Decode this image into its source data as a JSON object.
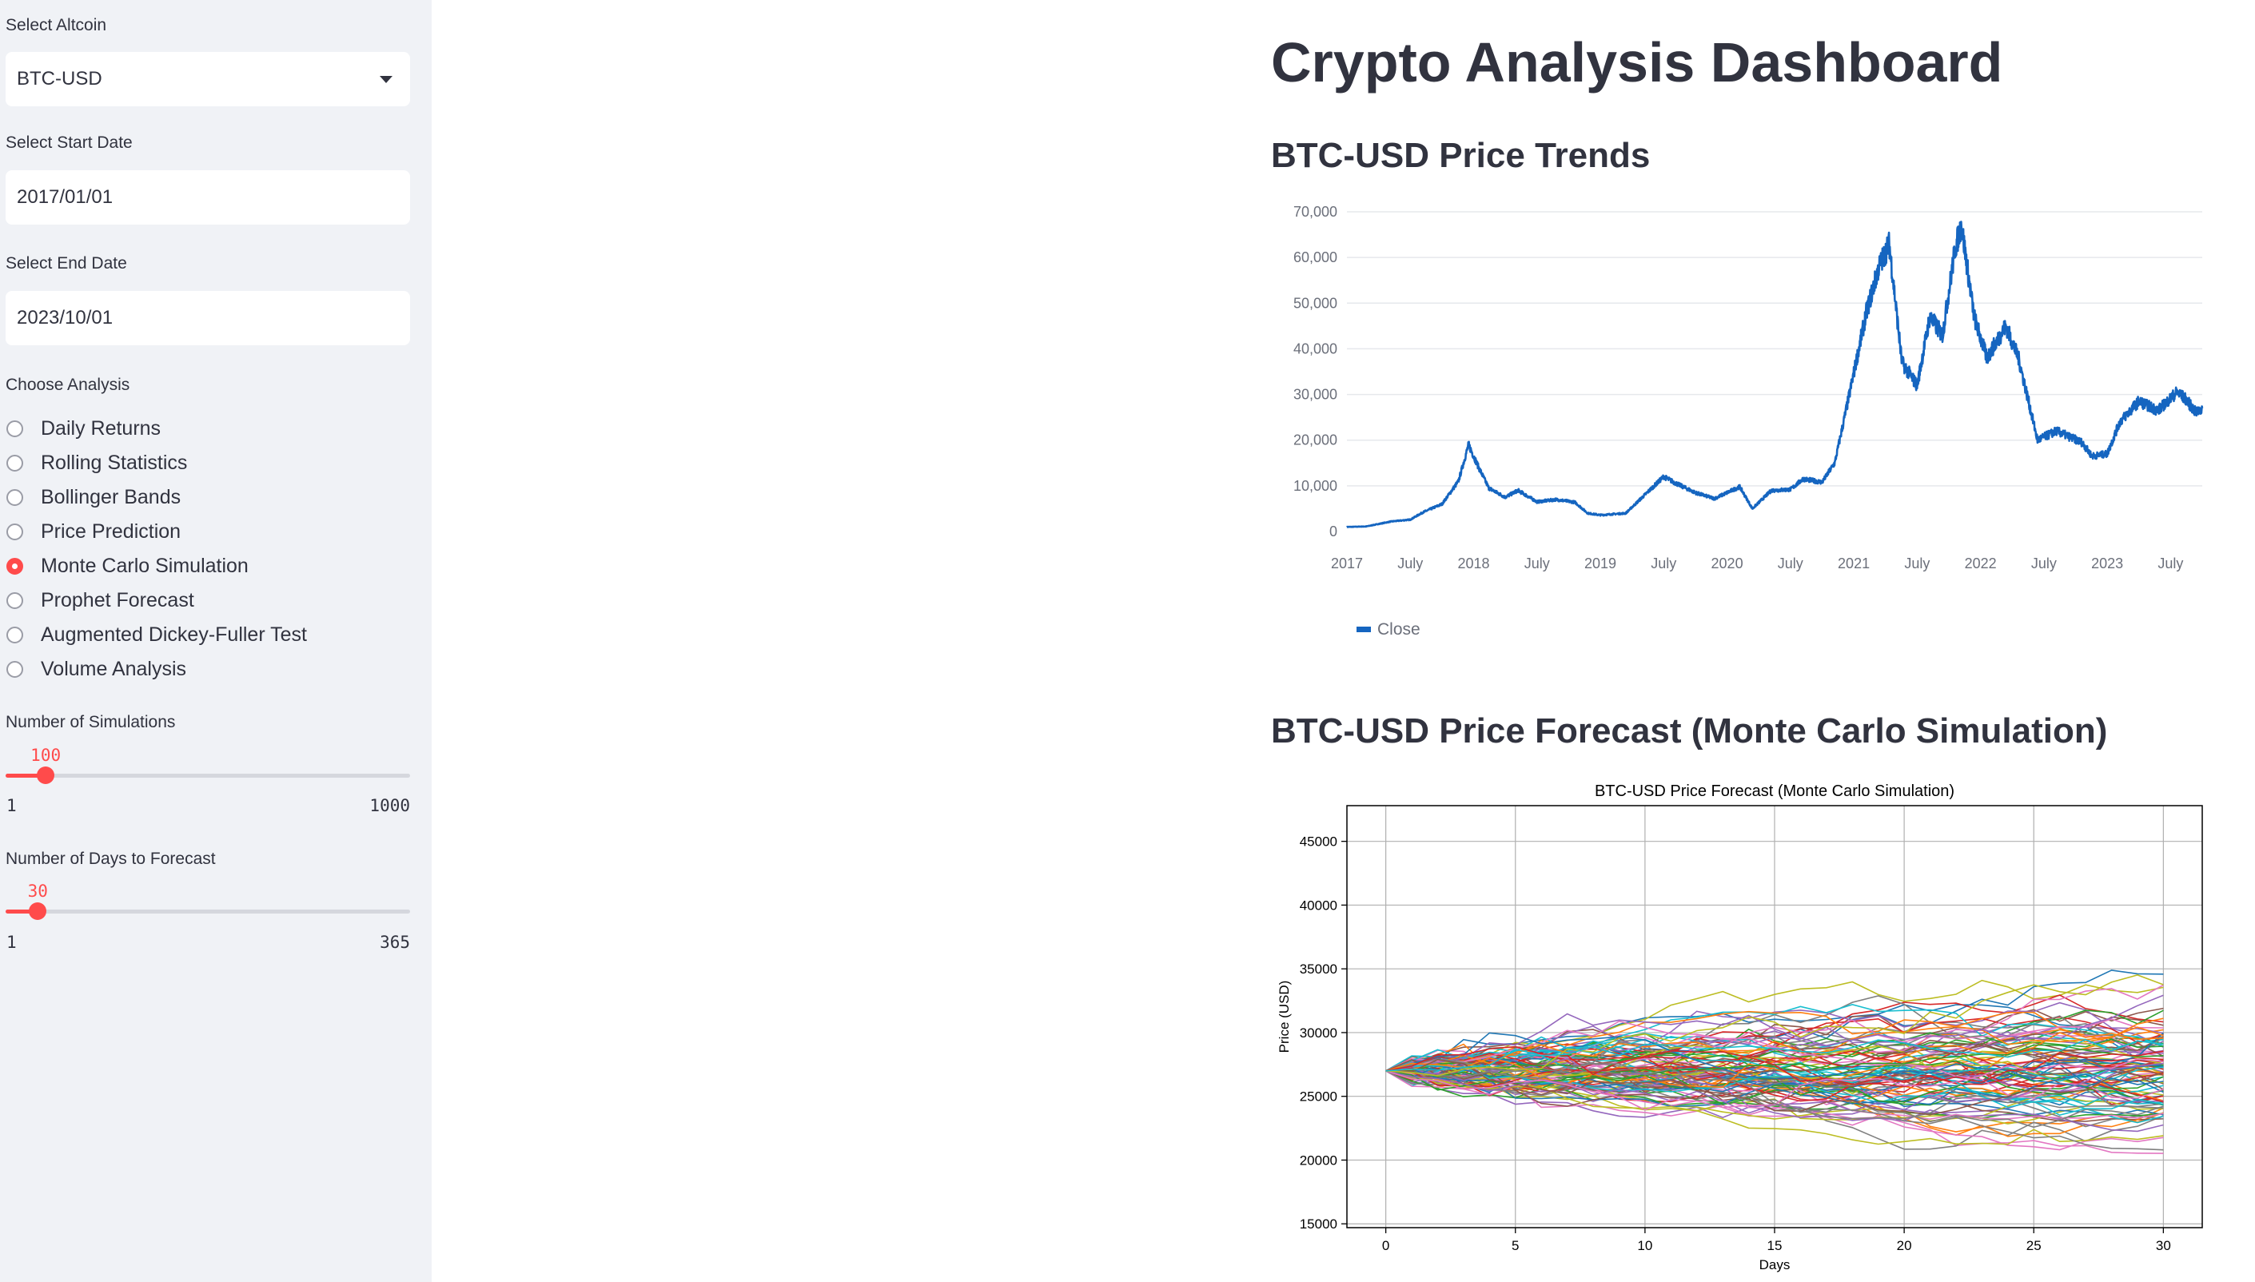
{
  "sidebar": {
    "altcoin_label": "Select Altcoin",
    "altcoin_value": "BTC-USD",
    "start_label": "Select Start Date",
    "start_value": "2017/01/01",
    "end_label": "Select End Date",
    "end_value": "2023/10/01",
    "analysis_label": "Choose Analysis",
    "analysis_options": [
      "Daily Returns",
      "Rolling Statistics",
      "Bollinger Bands",
      "Price Prediction",
      "Monte Carlo Simulation",
      "Prophet Forecast",
      "Augmented Dickey-Fuller Test",
      "Volume Analysis"
    ],
    "analysis_selected": "Monte Carlo Simulation",
    "simulations": {
      "label": "Number of Simulations",
      "value": 100,
      "value_text": "100",
      "min": 1,
      "max": 1000,
      "min_text": "1",
      "max_text": "1000"
    },
    "days": {
      "label": "Number of Days to Forecast",
      "value": 30,
      "value_text": "30",
      "min": 1,
      "max": 365,
      "min_text": "1",
      "max_text": "365"
    }
  },
  "main": {
    "title": "Crypto Analysis Dashboard",
    "trend_heading": "BTC-USD Price Trends",
    "forecast_heading": "BTC-USD Price Forecast (Monte Carlo Simulation)"
  },
  "colors": {
    "accent": "#ff4b4b",
    "line": "#1565c0",
    "sidebar_bg": "#f0f2f6",
    "text": "#31333f"
  },
  "chart_data": [
    {
      "type": "line",
      "title": "BTC-USD Price Trends",
      "series": [
        {
          "name": "Close"
        }
      ],
      "legend": [
        "Close"
      ],
      "x_tick_labels": [
        "2017",
        "July",
        "2018",
        "July",
        "2019",
        "July",
        "2020",
        "July",
        "2021",
        "July",
        "2022",
        "July",
        "2023",
        "July"
      ],
      "x_ticks": [
        2017.0,
        2017.5,
        2018.0,
        2018.5,
        2019.0,
        2019.5,
        2020.0,
        2020.5,
        2021.0,
        2021.5,
        2022.0,
        2022.5,
        2023.0,
        2023.5
      ],
      "xlim": [
        2017.0,
        2023.75
      ],
      "y_ticks": [
        0,
        10000,
        20000,
        30000,
        40000,
        50000,
        60000,
        70000
      ],
      "y_tick_labels": [
        "0",
        "10,000",
        "20,000",
        "30,000",
        "40,000",
        "50,000",
        "60,000",
        "70,000"
      ],
      "ylim": [
        0,
        70000
      ],
      "keypoints": [
        [
          2017.0,
          1000
        ],
        [
          2017.15,
          1100
        ],
        [
          2017.35,
          2200
        ],
        [
          2017.5,
          2600
        ],
        [
          2017.6,
          4200
        ],
        [
          2017.75,
          6000
        ],
        [
          2017.88,
          11000
        ],
        [
          2017.96,
          19000
        ],
        [
          2018.04,
          14000
        ],
        [
          2018.12,
          9500
        ],
        [
          2018.25,
          7500
        ],
        [
          2018.35,
          9000
        ],
        [
          2018.5,
          6500
        ],
        [
          2018.65,
          7000
        ],
        [
          2018.8,
          6400
        ],
        [
          2018.9,
          4000
        ],
        [
          2019.0,
          3600
        ],
        [
          2019.2,
          4000
        ],
        [
          2019.35,
          8000
        ],
        [
          2019.5,
          12000
        ],
        [
          2019.6,
          10500
        ],
        [
          2019.75,
          8500
        ],
        [
          2019.9,
          7200
        ],
        [
          2020.1,
          9800
        ],
        [
          2020.2,
          5000
        ],
        [
          2020.35,
          9000
        ],
        [
          2020.5,
          9200
        ],
        [
          2020.6,
          11500
        ],
        [
          2020.75,
          10800
        ],
        [
          2020.85,
          15000
        ],
        [
          2020.95,
          28000
        ],
        [
          2021.1,
          48000
        ],
        [
          2021.2,
          58000
        ],
        [
          2021.28,
          63000
        ],
        [
          2021.38,
          37000
        ],
        [
          2021.5,
          32000
        ],
        [
          2021.6,
          47000
        ],
        [
          2021.7,
          43000
        ],
        [
          2021.8,
          62000
        ],
        [
          2021.85,
          67000
        ],
        [
          2021.95,
          47000
        ],
        [
          2022.05,
          38000
        ],
        [
          2022.2,
          45000
        ],
        [
          2022.3,
          38000
        ],
        [
          2022.45,
          20000
        ],
        [
          2022.6,
          22000
        ],
        [
          2022.8,
          19500
        ],
        [
          2022.88,
          16500
        ],
        [
          2023.0,
          17000
        ],
        [
          2023.1,
          24000
        ],
        [
          2023.25,
          28500
        ],
        [
          2023.4,
          26500
        ],
        [
          2023.55,
          30500
        ],
        [
          2023.62,
          29000
        ],
        [
          2023.7,
          26000
        ],
        [
          2023.75,
          27000
        ]
      ]
    },
    {
      "type": "line",
      "title": "BTC-USD Price Forecast (Monte Carlo Simulation)",
      "xlabel": "Days",
      "ylabel": "Price (USD)",
      "xlim": [
        -1.5,
        31.5
      ],
      "ylim": [
        14700,
        47800
      ],
      "x_ticks": [
        0,
        5,
        10,
        15,
        20,
        25,
        30
      ],
      "y_ticks": [
        15000,
        20000,
        25000,
        30000,
        35000,
        40000,
        45000
      ],
      "grid": true,
      "start_price": 27000,
      "daily_volatility": 0.0205,
      "num_simulations": 100,
      "num_days": 30,
      "palette": [
        "#1f77b4",
        "#ff7f0e",
        "#2ca02c",
        "#d62728",
        "#9467bd",
        "#8c564b",
        "#e377c2",
        "#7f7f7f",
        "#bcbd22",
        "#17becf"
      ]
    }
  ]
}
